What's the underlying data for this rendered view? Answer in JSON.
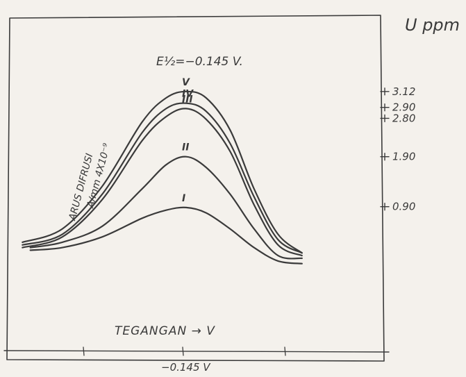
{
  "chart_data": {
    "type": "line",
    "title": "E½=−0.145 V.",
    "xlabel": "TEGANGAN → V",
    "ylabel_line1": "ARUS DIFRUSI",
    "ylabel_line2": "A/mm 4X10⁻⁹",
    "right_axis_label": "U ppm",
    "x_tick_label": "−0.145 V",
    "right_ticks": [
      "3.12",
      "2.90",
      "2.80",
      "1.90",
      "0.90"
    ],
    "right_tick_values": [
      3.12,
      2.9,
      2.8,
      1.9,
      0.9
    ],
    "series": [
      {
        "name": "V",
        "ppm": 3.12,
        "x": [
          -0.35,
          -0.3,
          -0.25,
          -0.2,
          -0.17,
          -0.145,
          -0.12,
          -0.09,
          -0.06,
          -0.03,
          0.0
        ],
        "y": [
          0.3,
          0.55,
          1.35,
          2.55,
          3.0,
          3.12,
          3.0,
          2.4,
          1.3,
          0.45,
          0.1
        ]
      },
      {
        "name": "IV",
        "ppm": 2.9,
        "x": [
          -0.35,
          -0.3,
          -0.25,
          -0.2,
          -0.17,
          -0.145,
          -0.12,
          -0.09,
          -0.06,
          -0.03,
          0.0
        ],
        "y": [
          0.25,
          0.45,
          1.2,
          2.35,
          2.8,
          2.9,
          2.75,
          2.15,
          1.15,
          0.35,
          0.1
        ]
      },
      {
        "name": "III",
        "ppm": 2.8,
        "x": [
          -0.35,
          -0.3,
          -0.25,
          -0.2,
          -0.17,
          -0.145,
          -0.12,
          -0.09,
          -0.06,
          -0.03,
          0.0
        ],
        "y": [
          0.2,
          0.4,
          1.1,
          2.2,
          2.65,
          2.8,
          2.6,
          2.0,
          1.0,
          0.25,
          0.05
        ]
      },
      {
        "name": "II",
        "ppm": 1.9,
        "x": [
          -0.34,
          -0.3,
          -0.25,
          -0.2,
          -0.17,
          -0.145,
          -0.12,
          -0.09,
          -0.06,
          -0.03,
          0.0
        ],
        "y": [
          0.2,
          0.3,
          0.6,
          1.3,
          1.75,
          1.9,
          1.7,
          1.2,
          0.55,
          0.05,
          0.0
        ]
      },
      {
        "name": "I",
        "ppm": 0.9,
        "x": [
          -0.34,
          -0.3,
          -0.25,
          -0.2,
          -0.17,
          -0.145,
          -0.12,
          -0.09,
          -0.06,
          -0.03,
          0.0
        ],
        "y": [
          0.15,
          0.2,
          0.4,
          0.75,
          0.9,
          0.95,
          0.85,
          0.55,
          0.2,
          -0.05,
          -0.1
        ]
      }
    ],
    "legend": "none",
    "grid": false
  }
}
